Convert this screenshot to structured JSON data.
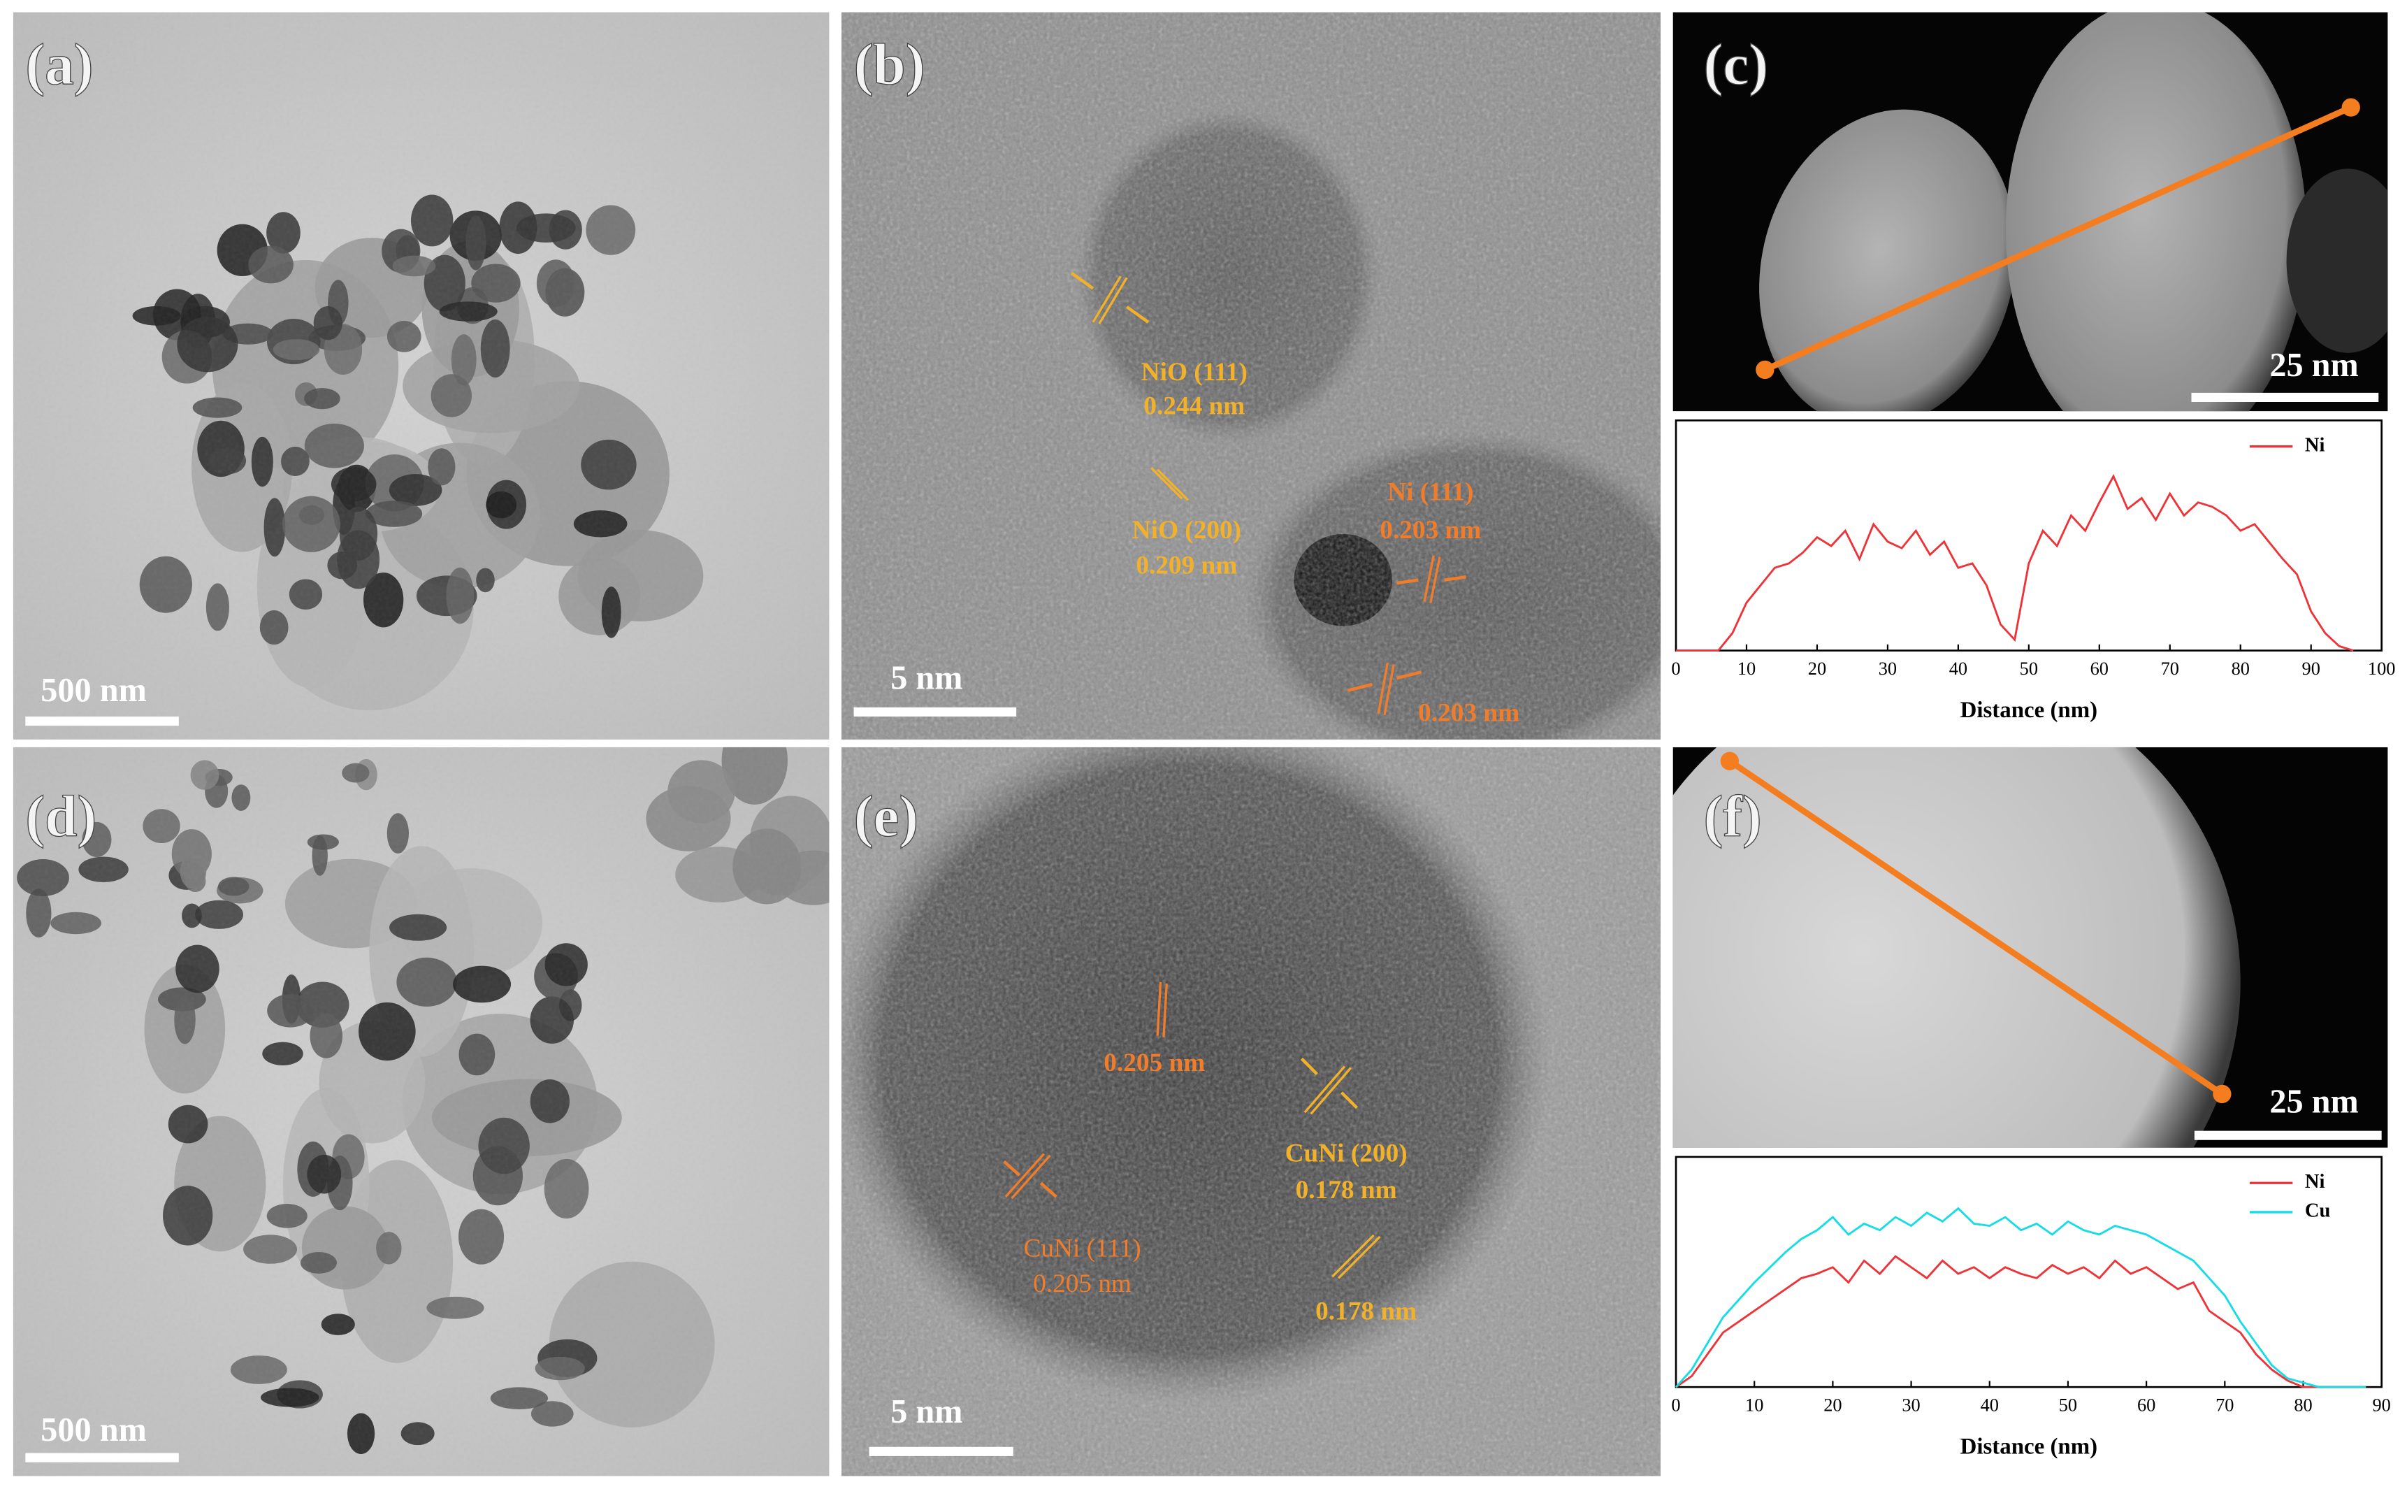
{
  "panels": [
    {
      "label": "(a)",
      "scale_bar": "500 nm"
    },
    {
      "label": "(b)",
      "scale_bar": "5 nm",
      "annotations": [
        "NiO (111)",
        "0.244 nm",
        "NiO (200)",
        "0.209 nm",
        "Ni (111)",
        "0.203 nm",
        "0.203 nm"
      ]
    },
    {
      "label": "(c)",
      "scale_bar": "25 nm"
    },
    {
      "label": "(d)",
      "scale_bar": "500 nm"
    },
    {
      "label": "(e)",
      "scale_bar": "5 nm",
      "annotations": [
        "0.205 nm",
        "CuNi (200)",
        "0.178 nm",
        "CuNi (111)",
        "0.205 nm",
        "0.178 nm"
      ]
    },
    {
      "label": "(f)",
      "scale_bar": "25 nm"
    }
  ],
  "chart_data": [
    {
      "type": "line",
      "x_label": "Distance (nm)",
      "x": [
        0,
        2,
        4,
        6,
        8,
        10,
        12,
        14,
        16,
        18,
        20,
        22,
        24,
        26,
        28,
        30,
        32,
        34,
        36,
        38,
        40,
        42,
        44,
        46,
        48,
        50,
        52,
        54,
        56,
        58,
        60,
        62,
        64,
        66,
        68,
        70,
        72,
        74,
        76,
        78,
        80,
        82,
        84,
        86,
        88,
        90,
        92,
        94,
        96
      ],
      "xlim": [
        0,
        100
      ],
      "xticks": [
        0,
        10,
        20,
        30,
        40,
        50,
        60,
        70,
        80,
        90,
        100
      ],
      "ylim": [
        0,
        100
      ],
      "series": [
        {
          "name": "Ni",
          "color": "#ee3338",
          "values": [
            0,
            0,
            0,
            0,
            8,
            22,
            30,
            38,
            40,
            45,
            52,
            48,
            55,
            42,
            58,
            50,
            47,
            55,
            44,
            50,
            38,
            40,
            30,
            12,
            5,
            40,
            55,
            48,
            62,
            55,
            68,
            80,
            65,
            70,
            60,
            72,
            62,
            68,
            66,
            62,
            55,
            58,
            50,
            42,
            35,
            18,
            8,
            2,
            0
          ]
        }
      ]
    },
    {
      "type": "line",
      "x_label": "Distance (nm)",
      "x": [
        0,
        2,
        4,
        6,
        8,
        10,
        12,
        14,
        16,
        18,
        20,
        22,
        24,
        26,
        28,
        30,
        32,
        34,
        36,
        38,
        40,
        42,
        44,
        46,
        48,
        50,
        52,
        54,
        56,
        58,
        60,
        62,
        64,
        66,
        68,
        70,
        72,
        74,
        76,
        78,
        80,
        82,
        84,
        86,
        88
      ],
      "xlim": [
        0,
        90
      ],
      "xticks": [
        0,
        10,
        20,
        30,
        40,
        50,
        60,
        70,
        80,
        90
      ],
      "ylim": [
        0,
        100
      ],
      "series": [
        {
          "name": "Ni",
          "color": "#ee3338",
          "values": [
            0,
            5,
            15,
            25,
            30,
            35,
            40,
            45,
            50,
            52,
            55,
            48,
            58,
            52,
            60,
            55,
            50,
            58,
            52,
            55,
            50,
            55,
            52,
            50,
            56,
            52,
            55,
            50,
            58,
            52,
            55,
            50,
            45,
            48,
            35,
            30,
            25,
            15,
            8,
            3,
            0,
            0,
            0,
            0,
            0
          ]
        },
        {
          "name": "Cu",
          "color": "#14dde6",
          "values": [
            0,
            8,
            20,
            32,
            40,
            48,
            55,
            62,
            68,
            72,
            78,
            70,
            75,
            72,
            78,
            74,
            80,
            76,
            82,
            75,
            74,
            78,
            72,
            75,
            70,
            76,
            72,
            70,
            74,
            72,
            70,
            66,
            62,
            58,
            50,
            42,
            30,
            20,
            10,
            4,
            2,
            0,
            0,
            0,
            0
          ]
        }
      ]
    }
  ]
}
